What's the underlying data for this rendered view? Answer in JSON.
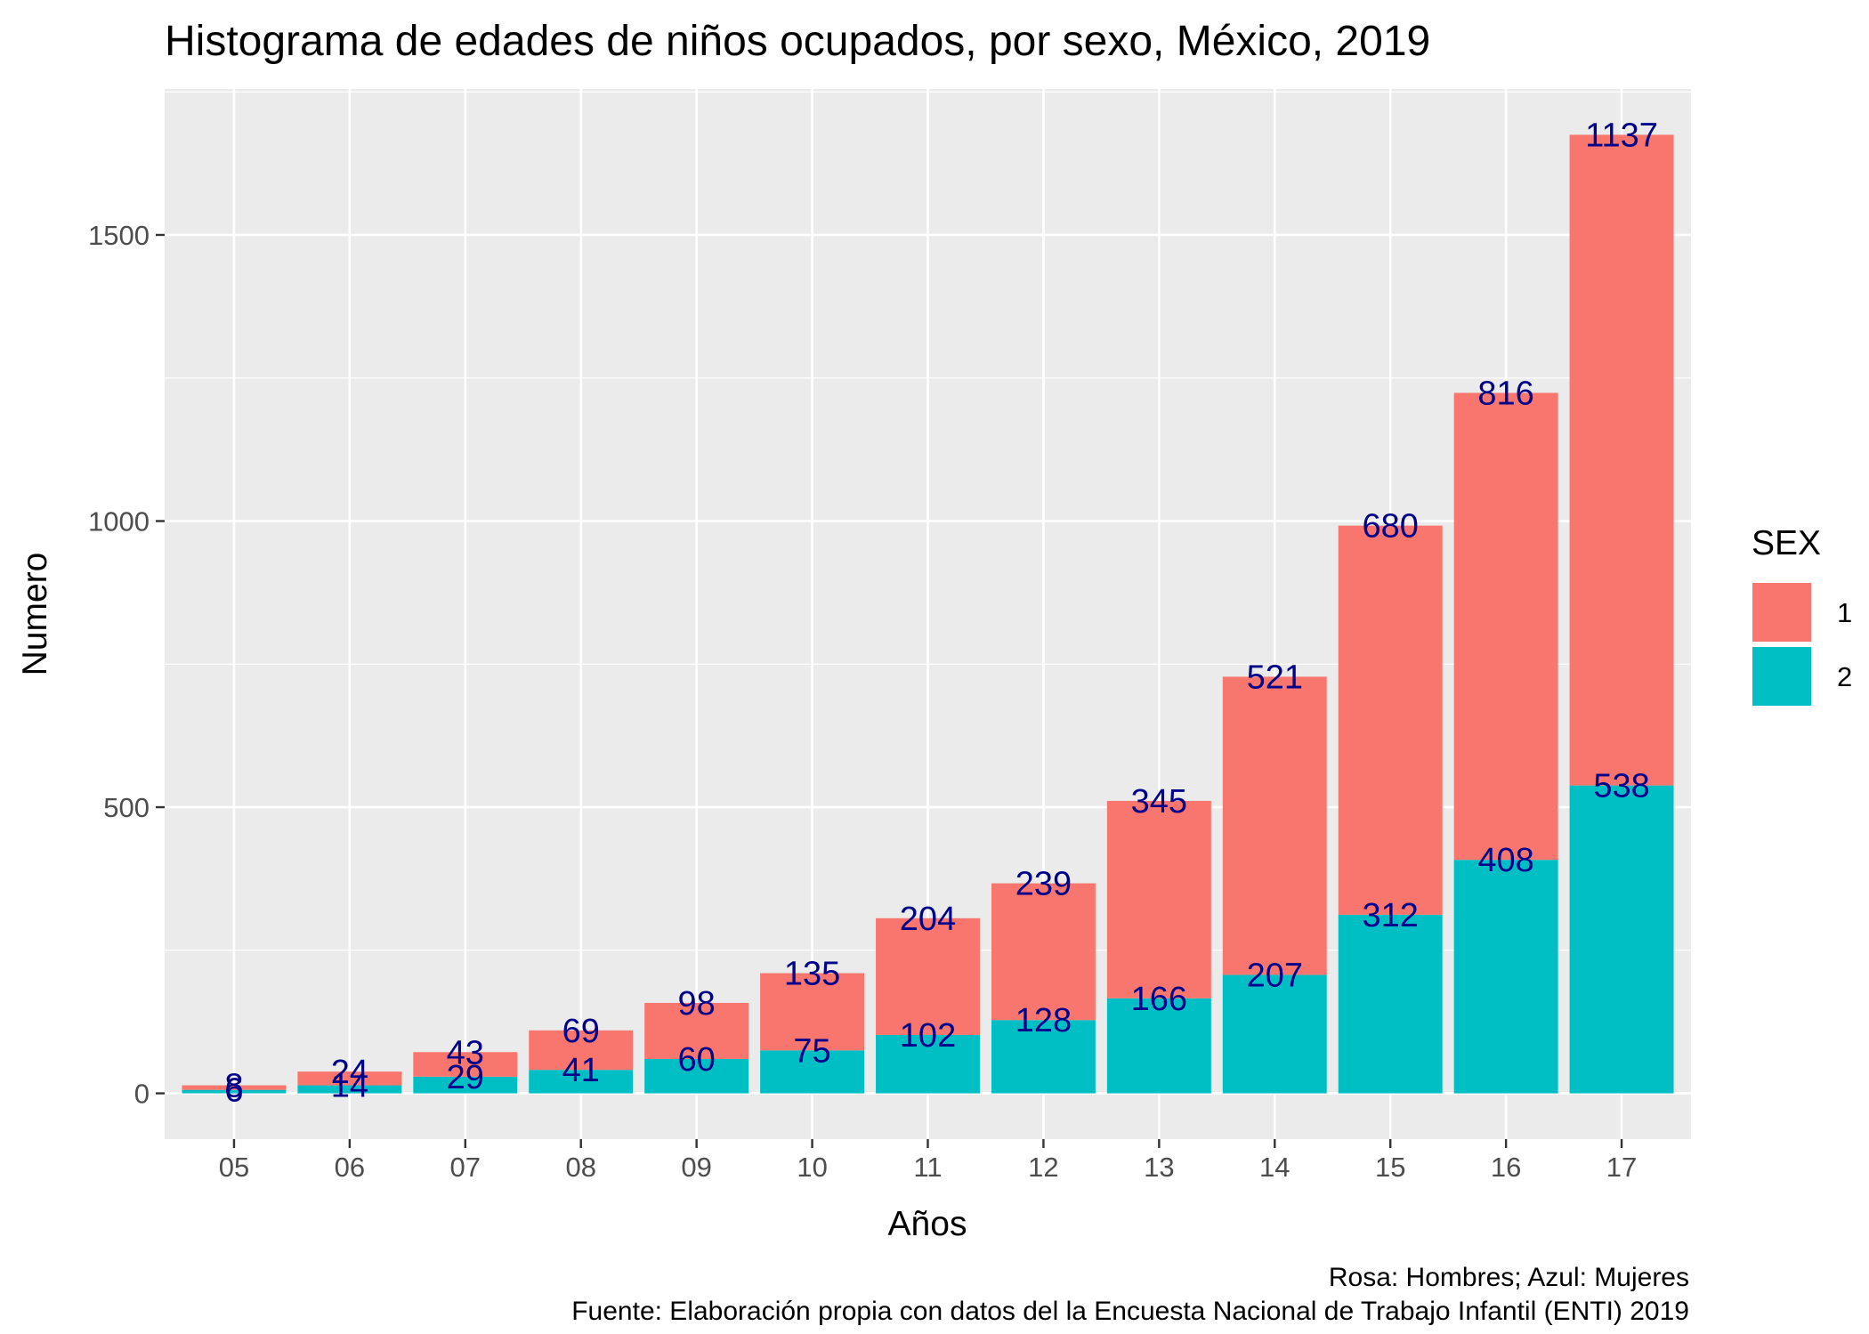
{
  "chart_data": {
    "type": "bar",
    "stacked": true,
    "title": "Histograma de edades de niños ocupados, por sexo, México, 2019",
    "xlabel": "Años",
    "ylabel": "Numero",
    "categories": [
      "05",
      "06",
      "07",
      "08",
      "09",
      "10",
      "11",
      "12",
      "13",
      "14",
      "15",
      "16",
      "17"
    ],
    "series": [
      {
        "name": "1",
        "color": "#F8766D",
        "values": [
          8,
          24,
          43,
          69,
          98,
          135,
          204,
          239,
          345,
          521,
          680,
          816,
          1137
        ]
      },
      {
        "name": "2",
        "color": "#00BFC4",
        "values": [
          6,
          14,
          29,
          41,
          60,
          75,
          102,
          128,
          166,
          207,
          312,
          408,
          538
        ]
      }
    ],
    "ylim": [
      -80,
      1755
    ],
    "yticks": [
      0,
      500,
      1000,
      1500
    ],
    "minor_yticks": [
      250,
      750,
      1250,
      1750
    ],
    "legend": {
      "title": "SEX",
      "position": "right"
    },
    "grid": true,
    "panel_background": "#EBEBEB",
    "label_color": "#00008B",
    "caption_lines": [
      "Rosa: Hombres; Azul: Mujeres",
      "Fuente: Elaboración propia con datos del la Encuesta Nacional de Trabajo Infantil (ENTI) 2019"
    ]
  }
}
